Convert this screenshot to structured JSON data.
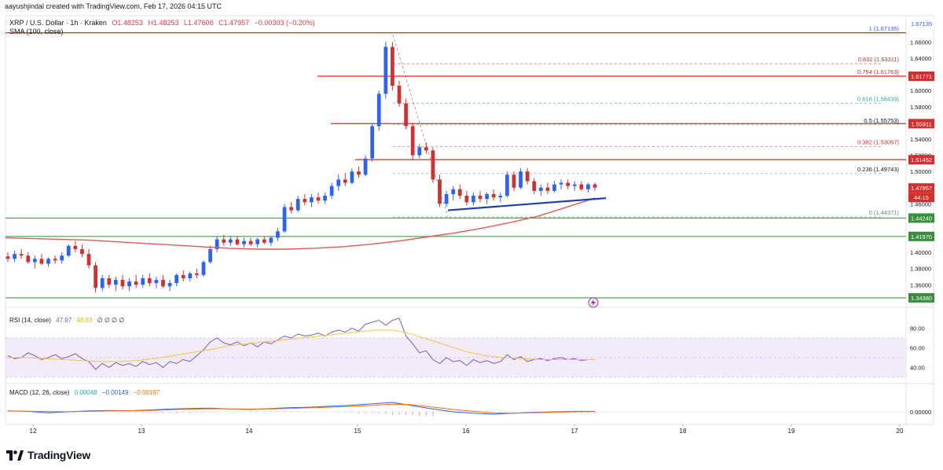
{
  "creator": "aayushjindal created with TradingView.com, Feb 17, 2026 04:15 UTC",
  "currency": "USD",
  "legend": {
    "symbol": "XRP / U.S. Dollar · 1h · Kraken",
    "o": "O1.48253",
    "h": "H1.48253",
    "l": "L1.47606",
    "c": "C1.47957",
    "chg": "−0.00303 (−0.20%)",
    "sma": "SMA (100, close)"
  },
  "brand": "TradingView",
  "price_axis_ticks": [
    "1.66000",
    "1.64000",
    "1.60000",
    "1.58000",
    "1.54000",
    "1.52000",
    "1.50000",
    "1.46000",
    "1.40000",
    "1.38000",
    "1.36000"
  ],
  "level_pills": [
    {
      "label": "1.67135",
      "color": "#ffffff"
    },
    {
      "label": "1.61771",
      "color": "#d32f2f"
    },
    {
      "label": "1.55911",
      "color": "#d32f2f"
    },
    {
      "label": "1.51452",
      "color": "#d32f2f"
    },
    {
      "label": "1.47957",
      "color": "#d32f2f"
    },
    {
      "label": "44:15",
      "color": "#d32f2f"
    },
    {
      "label": "1.44240",
      "color": "#388e3c"
    },
    {
      "label": "1.41970",
      "color": "#388e3c"
    },
    {
      "label": "1.34380",
      "color": "#388e3c"
    }
  ],
  "fib_labels": [
    {
      "text": "1 (1.67135)",
      "color": "#2962ff"
    },
    {
      "text": "0.832 (1.63311)",
      "color": "#d32f2f"
    },
    {
      "text": "0.764 (1.61763)",
      "color": "#d32f2f"
    },
    {
      "text": "0.618 (1.58439)",
      "color": "#26a69a"
    },
    {
      "text": "0.5 (1.55753)",
      "color": "#131722"
    },
    {
      "text": "0.382 (1.53067)",
      "color": "#d32f2f"
    },
    {
      "text": "0.236 (1.49743)",
      "color": "#131722"
    },
    {
      "text": "0 (1.44371)",
      "color": "#787b86"
    }
  ],
  "x_ticks": [
    "12",
    "13",
    "14",
    "15",
    "16",
    "17",
    "18",
    "19",
    "20"
  ],
  "rsi": {
    "label": "RSI (14, close)",
    "v1": "47.97",
    "v2": "48.83",
    "extras": "∅ ∅ ∅ ∅",
    "ticks": [
      "80.00",
      "60.00",
      "40.00"
    ]
  },
  "macd": {
    "label": "MACD (12, 26, close)",
    "v1": "0.00048",
    "v2": "−0.00149",
    "v3": "−0.00197",
    "tick": "0.00000"
  },
  "chart_data": {
    "type": "candlestick",
    "title": "XRP / U.S. Dollar · 1h · Kraken",
    "ylim": [
      1.335,
      1.675
    ],
    "x_ticks": [
      "12",
      "13",
      "14",
      "15",
      "16",
      "17",
      "18",
      "19",
      "20"
    ],
    "sma_period": 100,
    "candles": [
      [
        1.395,
        1.4,
        1.388,
        1.392
      ],
      [
        1.392,
        1.402,
        1.388,
        1.398
      ],
      [
        1.398,
        1.404,
        1.392,
        1.396
      ],
      [
        1.396,
        1.4,
        1.386,
        1.388
      ],
      [
        1.388,
        1.396,
        1.38,
        1.392
      ],
      [
        1.392,
        1.398,
        1.384,
        1.386
      ],
      [
        1.386,
        1.394,
        1.382,
        1.392
      ],
      [
        1.392,
        1.396,
        1.386,
        1.39
      ],
      [
        1.39,
        1.4,
        1.386,
        1.396
      ],
      [
        1.396,
        1.41,
        1.394,
        1.408
      ],
      [
        1.408,
        1.414,
        1.4,
        1.404
      ],
      [
        1.404,
        1.41,
        1.394,
        1.398
      ],
      [
        1.398,
        1.404,
        1.38,
        1.384
      ],
      [
        1.384,
        1.388,
        1.35,
        1.356
      ],
      [
        1.356,
        1.372,
        1.352,
        1.368
      ],
      [
        1.368,
        1.372,
        1.356,
        1.36
      ],
      [
        1.36,
        1.37,
        1.352,
        1.366
      ],
      [
        1.366,
        1.372,
        1.354,
        1.358
      ],
      [
        1.358,
        1.368,
        1.352,
        1.364
      ],
      [
        1.364,
        1.372,
        1.356,
        1.36
      ],
      [
        1.36,
        1.372,
        1.356,
        1.368
      ],
      [
        1.368,
        1.374,
        1.358,
        1.362
      ],
      [
        1.362,
        1.37,
        1.356,
        1.366
      ],
      [
        1.366,
        1.372,
        1.356,
        1.358
      ],
      [
        1.358,
        1.366,
        1.352,
        1.362
      ],
      [
        1.362,
        1.374,
        1.358,
        1.372
      ],
      [
        1.372,
        1.378,
        1.364,
        1.368
      ],
      [
        1.368,
        1.376,
        1.364,
        1.374
      ],
      [
        1.374,
        1.38,
        1.368,
        1.372
      ],
      [
        1.372,
        1.39,
        1.37,
        1.388
      ],
      [
        1.388,
        1.408,
        1.386,
        1.404
      ],
      [
        1.404,
        1.42,
        1.4,
        1.416
      ],
      [
        1.416,
        1.422,
        1.408,
        1.412
      ],
      [
        1.412,
        1.42,
        1.408,
        1.416
      ],
      [
        1.416,
        1.42,
        1.408,
        1.41
      ],
      [
        1.41,
        1.418,
        1.406,
        1.414
      ],
      [
        1.414,
        1.418,
        1.408,
        1.41
      ],
      [
        1.41,
        1.418,
        1.406,
        1.416
      ],
      [
        1.416,
        1.42,
        1.41,
        1.412
      ],
      [
        1.412,
        1.42,
        1.408,
        1.418
      ],
      [
        1.418,
        1.43,
        1.414,
        1.426
      ],
      [
        1.426,
        1.46,
        1.424,
        1.456
      ],
      [
        1.456,
        1.462,
        1.448,
        1.452
      ],
      [
        1.452,
        1.47,
        1.45,
        1.466
      ],
      [
        1.466,
        1.472,
        1.458,
        1.462
      ],
      [
        1.462,
        1.472,
        1.456,
        1.468
      ],
      [
        1.468,
        1.474,
        1.46,
        1.464
      ],
      [
        1.464,
        1.474,
        1.46,
        1.47
      ],
      [
        1.47,
        1.486,
        1.466,
        1.482
      ],
      [
        1.482,
        1.496,
        1.476,
        1.49
      ],
      [
        1.49,
        1.498,
        1.482,
        1.486
      ],
      [
        1.486,
        1.504,
        1.484,
        1.5
      ],
      [
        1.5,
        1.506,
        1.492,
        1.496
      ],
      [
        1.496,
        1.52,
        1.494,
        1.516
      ],
      [
        1.516,
        1.56,
        1.512,
        1.556
      ],
      [
        1.556,
        1.6,
        1.55,
        1.596
      ],
      [
        1.596,
        1.66,
        1.59,
        1.654
      ],
      [
        1.654,
        1.66,
        1.6,
        1.606
      ],
      [
        1.606,
        1.612,
        1.58,
        1.584
      ],
      [
        1.584,
        1.59,
        1.552,
        1.556
      ],
      [
        1.556,
        1.56,
        1.514,
        1.52
      ],
      [
        1.52,
        1.534,
        1.516,
        1.53
      ],
      [
        1.53,
        1.536,
        1.522,
        1.526
      ],
      [
        1.526,
        1.53,
        1.486,
        1.49
      ],
      [
        1.49,
        1.496,
        1.456,
        1.46
      ],
      [
        1.46,
        1.476,
        1.456,
        1.472
      ],
      [
        1.472,
        1.482,
        1.464,
        1.478
      ],
      [
        1.478,
        1.484,
        1.466,
        1.47
      ],
      [
        1.47,
        1.476,
        1.458,
        1.462
      ],
      [
        1.462,
        1.474,
        1.458,
        1.47
      ],
      [
        1.47,
        1.476,
        1.462,
        1.466
      ],
      [
        1.466,
        1.474,
        1.46,
        1.472
      ],
      [
        1.472,
        1.478,
        1.464,
        1.468
      ],
      [
        1.468,
        1.474,
        1.462,
        1.47
      ],
      [
        1.47,
        1.5,
        1.468,
        1.496
      ],
      [
        1.496,
        1.5,
        1.476,
        1.48
      ],
      [
        1.48,
        1.504,
        1.478,
        1.5
      ],
      [
        1.5,
        1.504,
        1.484,
        1.488
      ],
      [
        1.488,
        1.492,
        1.472,
        1.476
      ],
      [
        1.476,
        1.484,
        1.47,
        1.48
      ],
      [
        1.48,
        1.486,
        1.472,
        1.476
      ],
      [
        1.476,
        1.488,
        1.474,
        1.484
      ],
      [
        1.484,
        1.49,
        1.478,
        1.486
      ],
      [
        1.486,
        1.49,
        1.478,
        1.482
      ],
      [
        1.482,
        1.488,
        1.476,
        1.484
      ],
      [
        1.484,
        1.488,
        1.476,
        1.478
      ],
      [
        1.478,
        1.486,
        1.474,
        1.484
      ],
      [
        1.484,
        1.486,
        1.476,
        1.48
      ]
    ],
    "sma": [
      1.418,
      1.417,
      1.416,
      1.415,
      1.413,
      1.411,
      1.409,
      1.407,
      1.405,
      1.404,
      1.404,
      1.405,
      1.407,
      1.41,
      1.414,
      1.419,
      1.424,
      1.43,
      1.437,
      1.445,
      1.456,
      1.467
    ],
    "trendline": [
      [
        1.452,
        0
      ],
      [
        1.467,
        1
      ]
    ]
  }
}
